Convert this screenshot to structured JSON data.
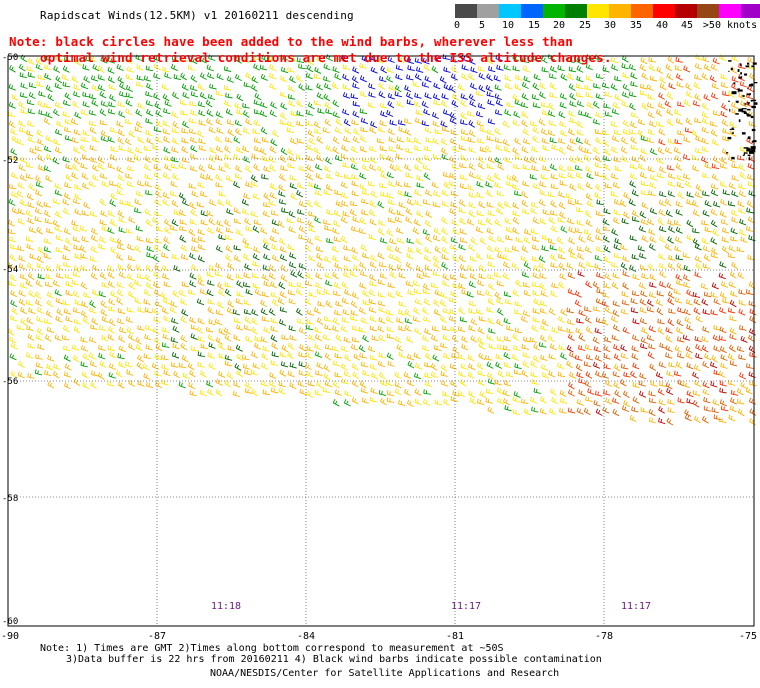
{
  "header": {
    "title": "Rapidscat Winds(12.5KM) v1 20160211 descending",
    "note_line1": "Note: black circles have been added to the wind barbs, wherever less than",
    "note_line2": "optimal wind retrieval conditions are met due to the ISS altitude changes."
  },
  "legend": {
    "unit": "knots",
    "labels": [
      "0",
      "5",
      "10",
      "15",
      "20",
      "25",
      "30",
      "35",
      "40",
      "45",
      ">50 knots"
    ],
    "colors": [
      "#4a4a4a",
      "#a0a0a0",
      "#00c8ff",
      "#0064ff",
      "#00b400",
      "#008000",
      "#ffe600",
      "#ffb400",
      "#ff6400",
      "#ff0000",
      "#b40000",
      "#964614",
      "#ff00ff",
      "#a000c8",
      "#500096"
    ]
  },
  "map": {
    "lat_labels": [
      "-50",
      "-52",
      "-54",
      "-56",
      "-58",
      "-60"
    ],
    "lon_labels": [
      "-90",
      "-87",
      "-84",
      "-81",
      "-78",
      "-75"
    ],
    "time_labels": [
      "11:18",
      "11:17",
      "11:17"
    ]
  },
  "footer": {
    "line1": "Note: 1) Times are GMT 2)Times along bottom correspond to measurement at ~50S",
    "line2": "3)Data buffer is 22 hrs from 20160211 4) Black wind barbs indicate possible contamination",
    "credit": "NOAA/NESDIS/Center for Satellite Applications and Research"
  }
}
